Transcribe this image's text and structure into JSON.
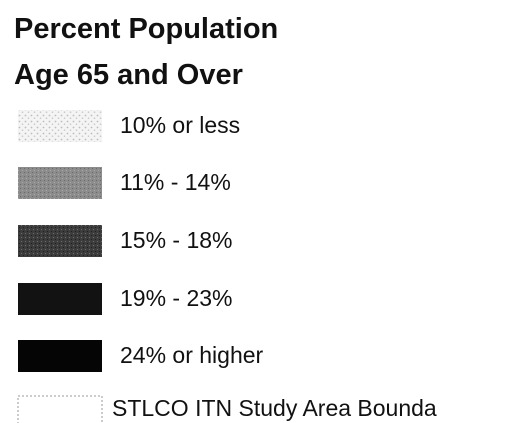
{
  "title": [
    "Percent Population",
    "Age 65 and Over"
  ],
  "legend": {
    "items": [
      {
        "label": "10% or less"
      },
      {
        "label": "11% - 14%"
      },
      {
        "label": "15% - 18%"
      },
      {
        "label": "19% - 23%"
      },
      {
        "label": "24% or higher"
      },
      {
        "label": "STLCO ITN Study Area Bounda"
      }
    ]
  }
}
